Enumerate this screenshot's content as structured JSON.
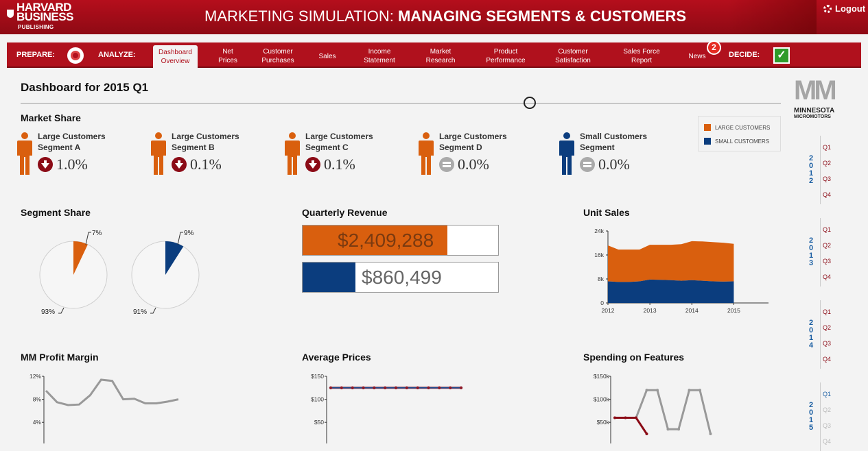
{
  "header": {
    "logo": {
      "line1": "HARVARD",
      "line2": "BUSINESS",
      "line3": "PUBLISHING"
    },
    "title_light": "MARKETING SIMULATION: ",
    "title_bold": "MANAGING SEGMENTS & CUSTOMERS",
    "logout": "Logout"
  },
  "nav": {
    "prepare": "PREPARE:",
    "analyze": "ANALYZE:",
    "decide": "DECIDE:",
    "items": [
      {
        "l1": "Dashboard",
        "l2": "Overview",
        "active": true
      },
      {
        "l1": "Net",
        "l2": "Prices"
      },
      {
        "l1": "Customer",
        "l2": "Purchases"
      },
      {
        "l1": "Sales",
        "l2": ""
      },
      {
        "l1": "Income",
        "l2": "Statement"
      },
      {
        "l1": "Market",
        "l2": "Research"
      },
      {
        "l1": "Product",
        "l2": "Performance"
      },
      {
        "l1": "Customer",
        "l2": "Satisfaction"
      },
      {
        "l1": "Sales Force",
        "l2": "Report"
      },
      {
        "l1": "News",
        "l2": ""
      }
    ],
    "news_badge": "2",
    "decide_check": "✓"
  },
  "dashboard": {
    "title": "Dashboard for 2015 Q1"
  },
  "brand": {
    "mark": "MM",
    "line1": "MINNESOTA",
    "line2": "MICROMOTORS"
  },
  "market_share": {
    "title": "Market Share",
    "segments": [
      {
        "l1": "Large Customers",
        "l2": "Segment A",
        "value": "1.0%",
        "trend": "down",
        "color": "#d95f0e"
      },
      {
        "l1": "Large Customers",
        "l2": "Segment B",
        "value": "0.1%",
        "trend": "down",
        "color": "#d95f0e"
      },
      {
        "l1": "Large Customers",
        "l2": "Segment C",
        "value": "0.1%",
        "trend": "down",
        "color": "#d95f0e"
      },
      {
        "l1": "Large Customers",
        "l2": "Segment D",
        "value": "0.0%",
        "trend": "equal",
        "color": "#d95f0e"
      },
      {
        "l1": "Small Customers",
        "l2": "Segment",
        "value": "0.0%",
        "trend": "equal",
        "color": "#0b3d7e"
      }
    ]
  },
  "legend": {
    "large": "LARGE CUSTOMERS",
    "small": "SMALL CUSTOMERS",
    "large_color": "#d95f0e",
    "small_color": "#0b3d7e"
  },
  "segment_share": {
    "title": "Segment Share",
    "pies": [
      {
        "share": 7,
        "rest": 93,
        "share_label": "7%",
        "rest_label": "93%",
        "color": "#d95f0e"
      },
      {
        "share": 9,
        "rest": 91,
        "share_label": "9%",
        "rest_label": "91%",
        "color": "#0b3d7e"
      }
    ]
  },
  "quarterly_revenue": {
    "title": "Quarterly Revenue",
    "bars": [
      {
        "label": "$2,409,288",
        "fill": 0.74,
        "color": "#d95f0e"
      },
      {
        "label": "$860,499",
        "fill": 0.27,
        "color": "#0b3d7e"
      }
    ]
  },
  "unit_sales": {
    "title": "Unit Sales"
  },
  "profit_margin": {
    "title": "MM Profit Margin"
  },
  "average_prices": {
    "title": "Average Prices"
  },
  "spending_features": {
    "title": "Spending on Features"
  },
  "timeline": [
    {
      "year": "2012",
      "quarters": [
        "Q1",
        "Q2",
        "Q3",
        "Q4"
      ],
      "state": "past"
    },
    {
      "year": "2013",
      "quarters": [
        "Q1",
        "Q2",
        "Q3",
        "Q4"
      ],
      "state": "past"
    },
    {
      "year": "2014",
      "quarters": [
        "Q1",
        "Q2",
        "Q3",
        "Q4"
      ],
      "state": "past"
    },
    {
      "year": "2015",
      "quarters": [
        "Q1",
        "Q2",
        "Q3",
        "Q4"
      ],
      "state": "current",
      "current_index": 0
    }
  ],
  "chart_data": [
    {
      "type": "area",
      "title": "Unit Sales",
      "x": [
        2012,
        2012.25,
        2012.5,
        2012.75,
        2013,
        2013.25,
        2013.5,
        2013.75,
        2014,
        2014.25,
        2014.5,
        2014.75,
        2015
      ],
      "xticks": [
        "2012",
        "2013",
        "2014",
        "2015"
      ],
      "yticks": [
        "0",
        "8k",
        "16k",
        "24k"
      ],
      "ylim": [
        0,
        24000
      ],
      "series": [
        {
          "name": "SMALL CUSTOMERS",
          "values": [
            7200,
            7000,
            7000,
            7200,
            7800,
            7700,
            7600,
            7400,
            7600,
            7400,
            7200,
            7100,
            7200
          ],
          "color": "#0b3d7e"
        },
        {
          "name": "LARGE CUSTOMERS",
          "values": [
            12000,
            10800,
            10800,
            10600,
            11600,
            11700,
            11800,
            12200,
            13000,
            13100,
            13100,
            13000,
            12500
          ],
          "color": "#d95f0e"
        }
      ]
    },
    {
      "type": "line",
      "title": "MM Profit Margin",
      "x": [
        0,
        1,
        2,
        3,
        4,
        5,
        6,
        7,
        8,
        9,
        10,
        11,
        12
      ],
      "yticks": [
        "4%",
        "8%",
        "12%"
      ],
      "ylim": [
        2,
        12
      ],
      "values": [
        9.5,
        7.5,
        7.0,
        7.1,
        8.7,
        11.4,
        11.2,
        8.0,
        8.1,
        7.3,
        7.3,
        7.6,
        8.0
      ],
      "color": "#999999"
    },
    {
      "type": "line",
      "title": "Average Prices",
      "yticks": [
        "$50",
        "$100",
        "$150"
      ],
      "ylim": [
        25,
        150
      ],
      "series": [
        {
          "values": [
            125,
            125,
            125,
            125,
            125,
            125,
            125,
            125,
            125,
            125,
            125,
            125,
            125
          ],
          "color": "#c0272d"
        },
        {
          "values": [
            125,
            125,
            125,
            125,
            125,
            125,
            125,
            125,
            125,
            125,
            125,
            125,
            125
          ],
          "color": "#1a4d8f"
        }
      ]
    },
    {
      "type": "line",
      "title": "Spending on Features",
      "yticks": [
        "$50k",
        "$100k",
        "$150k"
      ],
      "ylim": [
        25000,
        150000
      ],
      "series": [
        {
          "values": [
            60000,
            60000,
            60000,
            120000,
            120000,
            35000,
            35000,
            120000,
            120000,
            25000
          ],
          "color": "#999999"
        },
        {
          "values": [
            60000,
            60000,
            60000,
            25000
          ],
          "color": "#8b0b16"
        }
      ]
    }
  ]
}
